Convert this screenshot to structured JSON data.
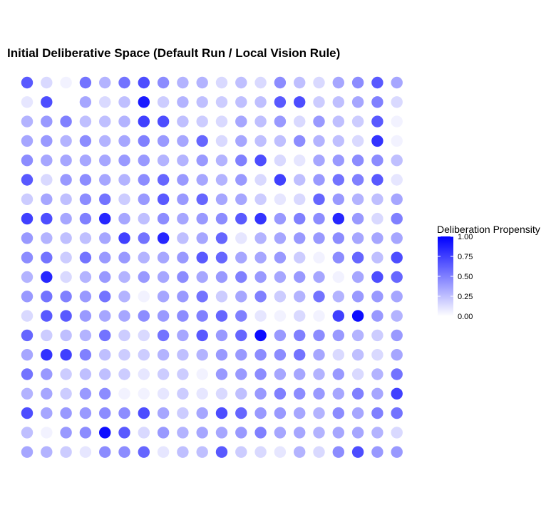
{
  "chart_data": {
    "type": "scatter",
    "title": "Initial Deliberative Space (Default Run / Local Vision Rule)",
    "xlabel": "",
    "ylabel": "",
    "grid": false,
    "legend_position": "right",
    "colors": {
      "low": "#ffffff",
      "high": "#0000ff"
    },
    "legend": {
      "title": "Deliberation Propensity",
      "limits": [
        0,
        1
      ],
      "ticks": [
        {
          "value": 1.0,
          "label": "1.00"
        },
        {
          "value": 0.75,
          "label": "0.75"
        },
        {
          "value": 0.5,
          "label": "0.50"
        },
        {
          "value": 0.25,
          "label": "0.25"
        },
        {
          "value": 0.0,
          "label": "0.00"
        }
      ]
    },
    "grid_size": {
      "cols": 20,
      "rows": 20
    },
    "rows": [
      [
        0.65,
        0.15,
        0.05,
        0.55,
        0.3,
        0.55,
        0.7,
        0.45,
        0.3,
        0.3,
        0.15,
        0.25,
        0.15,
        0.45,
        0.25,
        0.15,
        0.35,
        0.45,
        0.65,
        0.35
      ],
      [
        0.1,
        0.7,
        0.0,
        0.35,
        0.15,
        0.25,
        0.9,
        0.2,
        0.3,
        0.25,
        0.2,
        0.25,
        0.25,
        0.65,
        0.7,
        0.2,
        0.25,
        0.35,
        0.5,
        0.15
      ],
      [
        0.3,
        0.4,
        0.5,
        0.25,
        0.25,
        0.3,
        0.75,
        0.7,
        0.25,
        0.2,
        0.15,
        0.35,
        0.25,
        0.4,
        0.15,
        0.4,
        0.25,
        0.2,
        0.65,
        0.05
      ],
      [
        0.35,
        0.4,
        0.3,
        0.45,
        0.3,
        0.35,
        0.5,
        0.4,
        0.35,
        0.6,
        0.15,
        0.35,
        0.25,
        0.25,
        0.45,
        0.3,
        0.25,
        0.15,
        0.8,
        0.05
      ],
      [
        0.45,
        0.35,
        0.35,
        0.35,
        0.35,
        0.4,
        0.4,
        0.3,
        0.3,
        0.4,
        0.3,
        0.5,
        0.7,
        0.15,
        0.1,
        0.35,
        0.4,
        0.45,
        0.45,
        0.25
      ],
      [
        0.65,
        0.15,
        0.4,
        0.45,
        0.35,
        0.3,
        0.45,
        0.6,
        0.4,
        0.35,
        0.3,
        0.4,
        0.15,
        0.75,
        0.25,
        0.4,
        0.55,
        0.5,
        0.65,
        0.1
      ],
      [
        0.2,
        0.35,
        0.25,
        0.45,
        0.55,
        0.2,
        0.4,
        0.65,
        0.4,
        0.6,
        0.35,
        0.35,
        0.2,
        0.1,
        0.15,
        0.6,
        0.4,
        0.3,
        0.25,
        0.35
      ],
      [
        0.75,
        0.7,
        0.35,
        0.5,
        0.85,
        0.35,
        0.25,
        0.45,
        0.35,
        0.4,
        0.45,
        0.65,
        0.8,
        0.4,
        0.5,
        0.45,
        0.85,
        0.4,
        0.15,
        0.5
      ],
      [
        0.4,
        0.3,
        0.25,
        0.25,
        0.35,
        0.75,
        0.55,
        0.85,
        0.25,
        0.35,
        0.6,
        0.1,
        0.3,
        0.35,
        0.4,
        0.4,
        0.45,
        0.35,
        0.35,
        0.35
      ],
      [
        0.45,
        0.55,
        0.2,
        0.55,
        0.4,
        0.4,
        0.3,
        0.35,
        0.4,
        0.65,
        0.6,
        0.35,
        0.35,
        0.4,
        0.2,
        0.05,
        0.45,
        0.6,
        0.25,
        0.7
      ],
      [
        0.3,
        0.85,
        0.15,
        0.3,
        0.4,
        0.3,
        0.4,
        0.35,
        0.45,
        0.35,
        0.4,
        0.5,
        0.4,
        0.35,
        0.4,
        0.35,
        0.05,
        0.35,
        0.7,
        0.6
      ],
      [
        0.4,
        0.55,
        0.5,
        0.4,
        0.55,
        0.3,
        0.05,
        0.35,
        0.4,
        0.55,
        0.2,
        0.35,
        0.5,
        0.2,
        0.3,
        0.55,
        0.3,
        0.4,
        0.4,
        0.35
      ],
      [
        0.15,
        0.65,
        0.65,
        0.4,
        0.35,
        0.35,
        0.45,
        0.4,
        0.45,
        0.5,
        0.6,
        0.5,
        0.1,
        0.05,
        0.15,
        0.05,
        0.75,
        0.95,
        0.4,
        0.3
      ],
      [
        0.6,
        0.2,
        0.25,
        0.3,
        0.55,
        0.2,
        0.15,
        0.55,
        0.35,
        0.65,
        0.4,
        0.6,
        0.95,
        0.4,
        0.5,
        0.45,
        0.4,
        0.3,
        0.2,
        0.4
      ],
      [
        0.35,
        0.8,
        0.75,
        0.5,
        0.25,
        0.2,
        0.2,
        0.3,
        0.25,
        0.3,
        0.4,
        0.4,
        0.45,
        0.45,
        0.55,
        0.35,
        0.15,
        0.25,
        0.15,
        0.35
      ],
      [
        0.55,
        0.4,
        0.2,
        0.25,
        0.25,
        0.2,
        0.1,
        0.2,
        0.2,
        0.05,
        0.4,
        0.4,
        0.45,
        0.35,
        0.35,
        0.3,
        0.4,
        0.15,
        0.3,
        0.55
      ],
      [
        0.3,
        0.35,
        0.2,
        0.4,
        0.45,
        0.05,
        0.05,
        0.1,
        0.2,
        0.1,
        0.15,
        0.25,
        0.4,
        0.5,
        0.45,
        0.4,
        0.35,
        0.5,
        0.35,
        0.75
      ],
      [
        0.7,
        0.35,
        0.4,
        0.4,
        0.45,
        0.45,
        0.7,
        0.35,
        0.2,
        0.35,
        0.7,
        0.6,
        0.4,
        0.4,
        0.35,
        0.3,
        0.45,
        0.35,
        0.5,
        0.55
      ],
      [
        0.25,
        0.05,
        0.4,
        0.45,
        0.95,
        0.65,
        0.15,
        0.4,
        0.3,
        0.35,
        0.35,
        0.4,
        0.5,
        0.35,
        0.35,
        0.3,
        0.35,
        0.35,
        0.3,
        0.15
      ],
      [
        0.35,
        0.3,
        0.2,
        0.1,
        0.45,
        0.45,
        0.6,
        0.1,
        0.25,
        0.25,
        0.65,
        0.2,
        0.15,
        0.1,
        0.3,
        0.15,
        0.45,
        0.7,
        0.4,
        0.4
      ]
    ]
  }
}
